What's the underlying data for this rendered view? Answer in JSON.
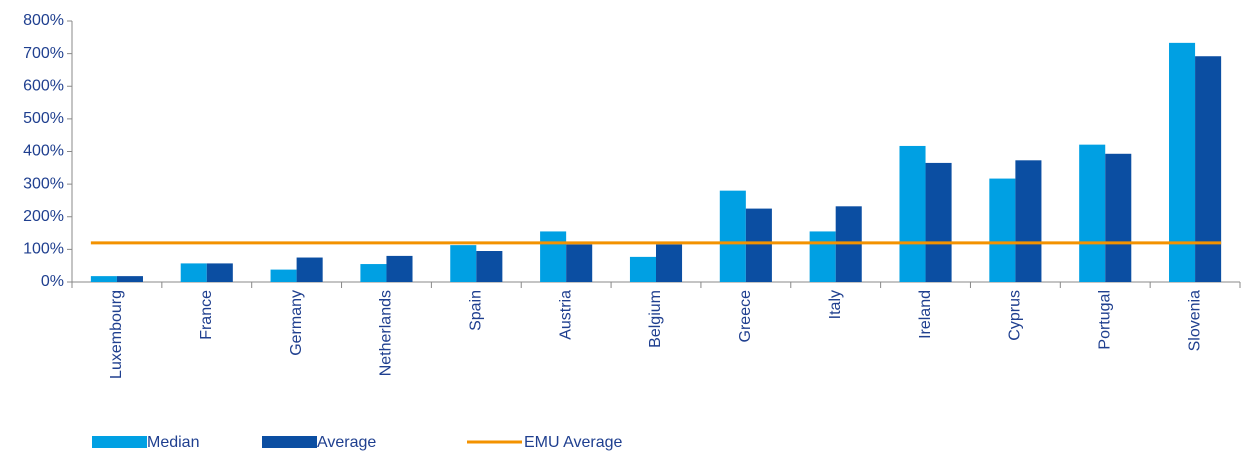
{
  "chart_data": {
    "type": "bar",
    "categories": [
      "Luxembourg",
      "France",
      "Germany",
      "Netherlands",
      "Spain",
      "Austria",
      "Belgium",
      "Greece",
      "Italy",
      "Ireland",
      "Cyprus",
      "Portugal",
      "Slovenia"
    ],
    "series": [
      {
        "name": "Median",
        "type": "bar",
        "color": "#00a0e3",
        "values": [
          18,
          57,
          38,
          55,
          113,
          155,
          77,
          280,
          155,
          417,
          317,
          421,
          733
        ]
      },
      {
        "name": "Average",
        "type": "bar",
        "color": "#0b4ea2",
        "values": [
          18,
          57,
          75,
          80,
          95,
          115,
          115,
          225,
          232,
          365,
          373,
          393,
          692
        ]
      },
      {
        "name": "EMU Average",
        "type": "line",
        "color": "#f39200",
        "values": [
          120,
          120,
          120,
          120,
          120,
          120,
          120,
          120,
          120,
          120,
          120,
          120,
          120
        ]
      }
    ],
    "ylim": [
      0,
      800
    ],
    "yticks": [
      {
        "value": 0,
        "label": "0%"
      },
      {
        "value": 100,
        "label": "100%"
      },
      {
        "value": 200,
        "label": "200%"
      },
      {
        "value": 300,
        "label": "300%"
      },
      {
        "value": 400,
        "label": "400%"
      },
      {
        "value": 500,
        "label": "500%"
      },
      {
        "value": 600,
        "label": "600%"
      },
      {
        "value": 700,
        "label": "700%"
      },
      {
        "value": 800,
        "label": "800%"
      }
    ],
    "grid": false
  }
}
